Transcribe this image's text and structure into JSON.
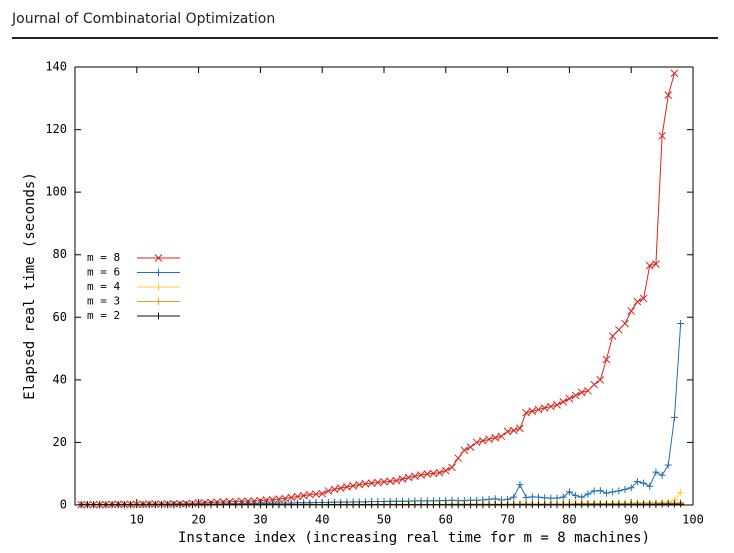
{
  "header": {
    "title": "Journal of Combinatorial Optimization"
  },
  "chart_data": {
    "type": "line",
    "xlabel": "Instance index (increasing real time for m = 8 machines)",
    "ylabel": "Elapsed real time (seconds)",
    "xlim": [
      0,
      100
    ],
    "ylim": [
      0,
      140
    ],
    "xticks": [
      10,
      20,
      30,
      40,
      50,
      60,
      70,
      80,
      90,
      100
    ],
    "yticks": [
      0,
      20,
      40,
      60,
      80,
      100,
      120,
      140
    ],
    "legend": "left",
    "x": [
      1,
      2,
      3,
      4,
      5,
      6,
      7,
      8,
      9,
      10,
      11,
      12,
      13,
      14,
      15,
      16,
      17,
      18,
      19,
      20,
      21,
      22,
      23,
      24,
      25,
      26,
      27,
      28,
      29,
      30,
      31,
      32,
      33,
      34,
      35,
      36,
      37,
      38,
      39,
      40,
      41,
      42,
      43,
      44,
      45,
      46,
      47,
      48,
      49,
      50,
      51,
      52,
      53,
      54,
      55,
      56,
      57,
      58,
      59,
      60,
      61,
      62,
      63,
      64,
      65,
      66,
      67,
      68,
      69,
      70,
      71,
      72,
      73,
      74,
      75,
      76,
      77,
      78,
      79,
      80,
      81,
      82,
      83,
      84,
      85,
      86,
      87,
      88,
      89,
      90,
      91,
      92,
      93,
      94,
      95,
      96,
      97,
      98
    ],
    "series": [
      {
        "name": "m = 8",
        "color": "#d8261e",
        "marker": "x",
        "values": [
          0.1,
          0.1,
          0.1,
          0.1,
          0.1,
          0.2,
          0.2,
          0.2,
          0.2,
          0.2,
          0.2,
          0.3,
          0.3,
          0.3,
          0.3,
          0.4,
          0.4,
          0.4,
          0.5,
          0.6,
          0.7,
          0.8,
          0.9,
          1.0,
          1.0,
          1.1,
          1.2,
          1.2,
          1.3,
          1.4,
          1.6,
          1.7,
          1.9,
          2.1,
          2.4,
          2.7,
          3.0,
          3.3,
          3.5,
          3.6,
          4.5,
          5.0,
          5.4,
          5.8,
          6.1,
          6.5,
          6.8,
          7.0,
          7.2,
          7.4,
          7.6,
          7.8,
          8.3,
          8.8,
          9.2,
          9.6,
          9.9,
          10.1,
          10.3,
          11,
          12,
          15,
          17.5,
          18.5,
          20,
          20.5,
          21,
          21.5,
          22,
          23.5,
          23.8,
          24.5,
          29.5,
          30,
          30.5,
          31,
          31.5,
          32,
          33,
          34,
          35,
          36,
          36.5,
          38.5,
          40,
          46.5,
          54,
          56,
          58,
          62,
          65,
          66,
          76.5,
          77,
          118,
          131,
          138,
          null
        ]
      },
      {
        "name": "m = 6",
        "color": "#1f6fae",
        "marker": "+",
        "values": [
          0.1,
          0.1,
          0.1,
          0.1,
          0.1,
          0.1,
          0.1,
          0.1,
          0.1,
          0.1,
          0.2,
          0.2,
          0.2,
          0.2,
          0.2,
          0.2,
          0.2,
          0.2,
          0.2,
          0.2,
          0.3,
          0.3,
          0.3,
          0.3,
          0.4,
          0.4,
          0.4,
          0.4,
          0.5,
          0.5,
          0.5,
          0.5,
          0.6,
          0.6,
          0.6,
          0.7,
          0.7,
          0.7,
          0.8,
          0.8,
          0.8,
          0.9,
          0.9,
          0.9,
          1.0,
          1.0,
          1.0,
          1.1,
          1.1,
          1.1,
          1.2,
          1.2,
          1.2,
          1.2,
          1.3,
          1.3,
          1.3,
          1.3,
          1.4,
          1.4,
          1.5,
          1.4,
          1.4,
          1.5,
          1.5,
          1.6,
          1.8,
          2.0,
          1.6,
          1.8,
          2.5,
          6.5,
          2.4,
          2.6,
          2.5,
          2.3,
          2.2,
          2.2,
          2.5,
          4.2,
          3.0,
          2.5,
          3.5,
          4.5,
          4.6,
          3.8,
          4.2,
          4.5,
          5.0,
          5.5,
          7.5,
          7,
          6,
          10.5,
          9.5,
          12.8,
          28,
          58
        ]
      },
      {
        "name": "m = 4",
        "color": "#f2d13a",
        "marker": "+",
        "values": [
          0.1,
          0.1,
          0.1,
          0.1,
          0.1,
          0.1,
          0.1,
          0.1,
          0.1,
          0.1,
          0.1,
          0.1,
          0.1,
          0.1,
          0.1,
          0.1,
          0.1,
          0.1,
          0.1,
          0.1,
          0.1,
          0.1,
          0.1,
          0.1,
          0.1,
          0.1,
          0.1,
          0.1,
          0.1,
          0.1,
          0.1,
          0.1,
          0.1,
          0.1,
          0.1,
          0.1,
          0.1,
          0.1,
          0.1,
          0.1,
          0.2,
          0.2,
          0.2,
          0.2,
          0.2,
          0.2,
          0.2,
          0.2,
          0.2,
          0.2,
          0.2,
          0.2,
          0.2,
          0.2,
          0.2,
          0.2,
          0.2,
          0.2,
          0.2,
          0.2,
          0.3,
          0.3,
          0.3,
          0.3,
          0.3,
          0.3,
          0.3,
          0.3,
          0.3,
          0.3,
          0.4,
          0.4,
          0.4,
          0.4,
          0.4,
          0.4,
          0.4,
          0.4,
          0.4,
          0.5,
          0.5,
          0.5,
          0.5,
          0.5,
          0.5,
          0.5,
          0.5,
          0.6,
          0.6,
          0.6,
          0.7,
          0.7,
          0.7,
          0.8,
          0.8,
          0.9,
          1.5,
          4
        ]
      },
      {
        "name": "m = 3",
        "color": "#f0a020",
        "marker": "+",
        "values": [
          0.1,
          0.1,
          0.1,
          0.1,
          0.1,
          0.1,
          0.1,
          0.1,
          0.1,
          0.1,
          0.1,
          0.1,
          0.1,
          0.1,
          0.1,
          0.1,
          0.1,
          0.1,
          0.1,
          0.1,
          0.1,
          0.1,
          0.1,
          0.1,
          0.1,
          0.1,
          0.1,
          0.1,
          0.1,
          0.1,
          0.1,
          0.1,
          0.1,
          0.1,
          0.1,
          0.1,
          0.1,
          0.1,
          0.1,
          0.1,
          0.1,
          0.1,
          0.1,
          0.1,
          0.1,
          0.1,
          0.1,
          0.1,
          0.1,
          0.1,
          0.1,
          0.1,
          0.1,
          0.1,
          0.1,
          0.1,
          0.1,
          0.1,
          0.1,
          0.1,
          0.2,
          0.2,
          0.2,
          0.2,
          0.2,
          0.2,
          0.2,
          0.2,
          0.2,
          0.2,
          0.2,
          0.2,
          0.2,
          0.2,
          0.2,
          0.2,
          0.2,
          0.2,
          0.2,
          0.2,
          0.3,
          0.3,
          0.3,
          0.3,
          0.3,
          0.3,
          0.3,
          0.3,
          0.3,
          0.3,
          0.4,
          0.4,
          0.4,
          0.4,
          0.4,
          0.5,
          0.6,
          0.8
        ]
      },
      {
        "name": "m = 2",
        "color": "#111111",
        "marker": "+",
        "values": [
          0.1,
          0.1,
          0.1,
          0.1,
          0.1,
          0.1,
          0.1,
          0.1,
          0.1,
          0.1,
          0.1,
          0.1,
          0.1,
          0.1,
          0.1,
          0.1,
          0.1,
          0.1,
          0.1,
          0.1,
          0.1,
          0.1,
          0.1,
          0.1,
          0.1,
          0.1,
          0.1,
          0.1,
          0.1,
          0.1,
          0.1,
          0.1,
          0.1,
          0.1,
          0.1,
          0.1,
          0.1,
          0.1,
          0.1,
          0.1,
          0.1,
          0.1,
          0.1,
          0.1,
          0.1,
          0.1,
          0.1,
          0.1,
          0.1,
          0.1,
          0.1,
          0.1,
          0.1,
          0.1,
          0.1,
          0.1,
          0.1,
          0.1,
          0.1,
          0.1,
          0.1,
          0.1,
          0.1,
          0.1,
          0.1,
          0.1,
          0.1,
          0.1,
          0.1,
          0.1,
          0.1,
          0.1,
          0.1,
          0.1,
          0.1,
          0.1,
          0.1,
          0.1,
          0.1,
          0.1,
          0.2,
          0.2,
          0.2,
          0.2,
          0.2,
          0.2,
          0.2,
          0.2,
          0.2,
          0.2,
          0.2,
          0.2,
          0.2,
          0.2,
          0.3,
          0.3,
          0.3,
          0.3
        ]
      }
    ]
  }
}
